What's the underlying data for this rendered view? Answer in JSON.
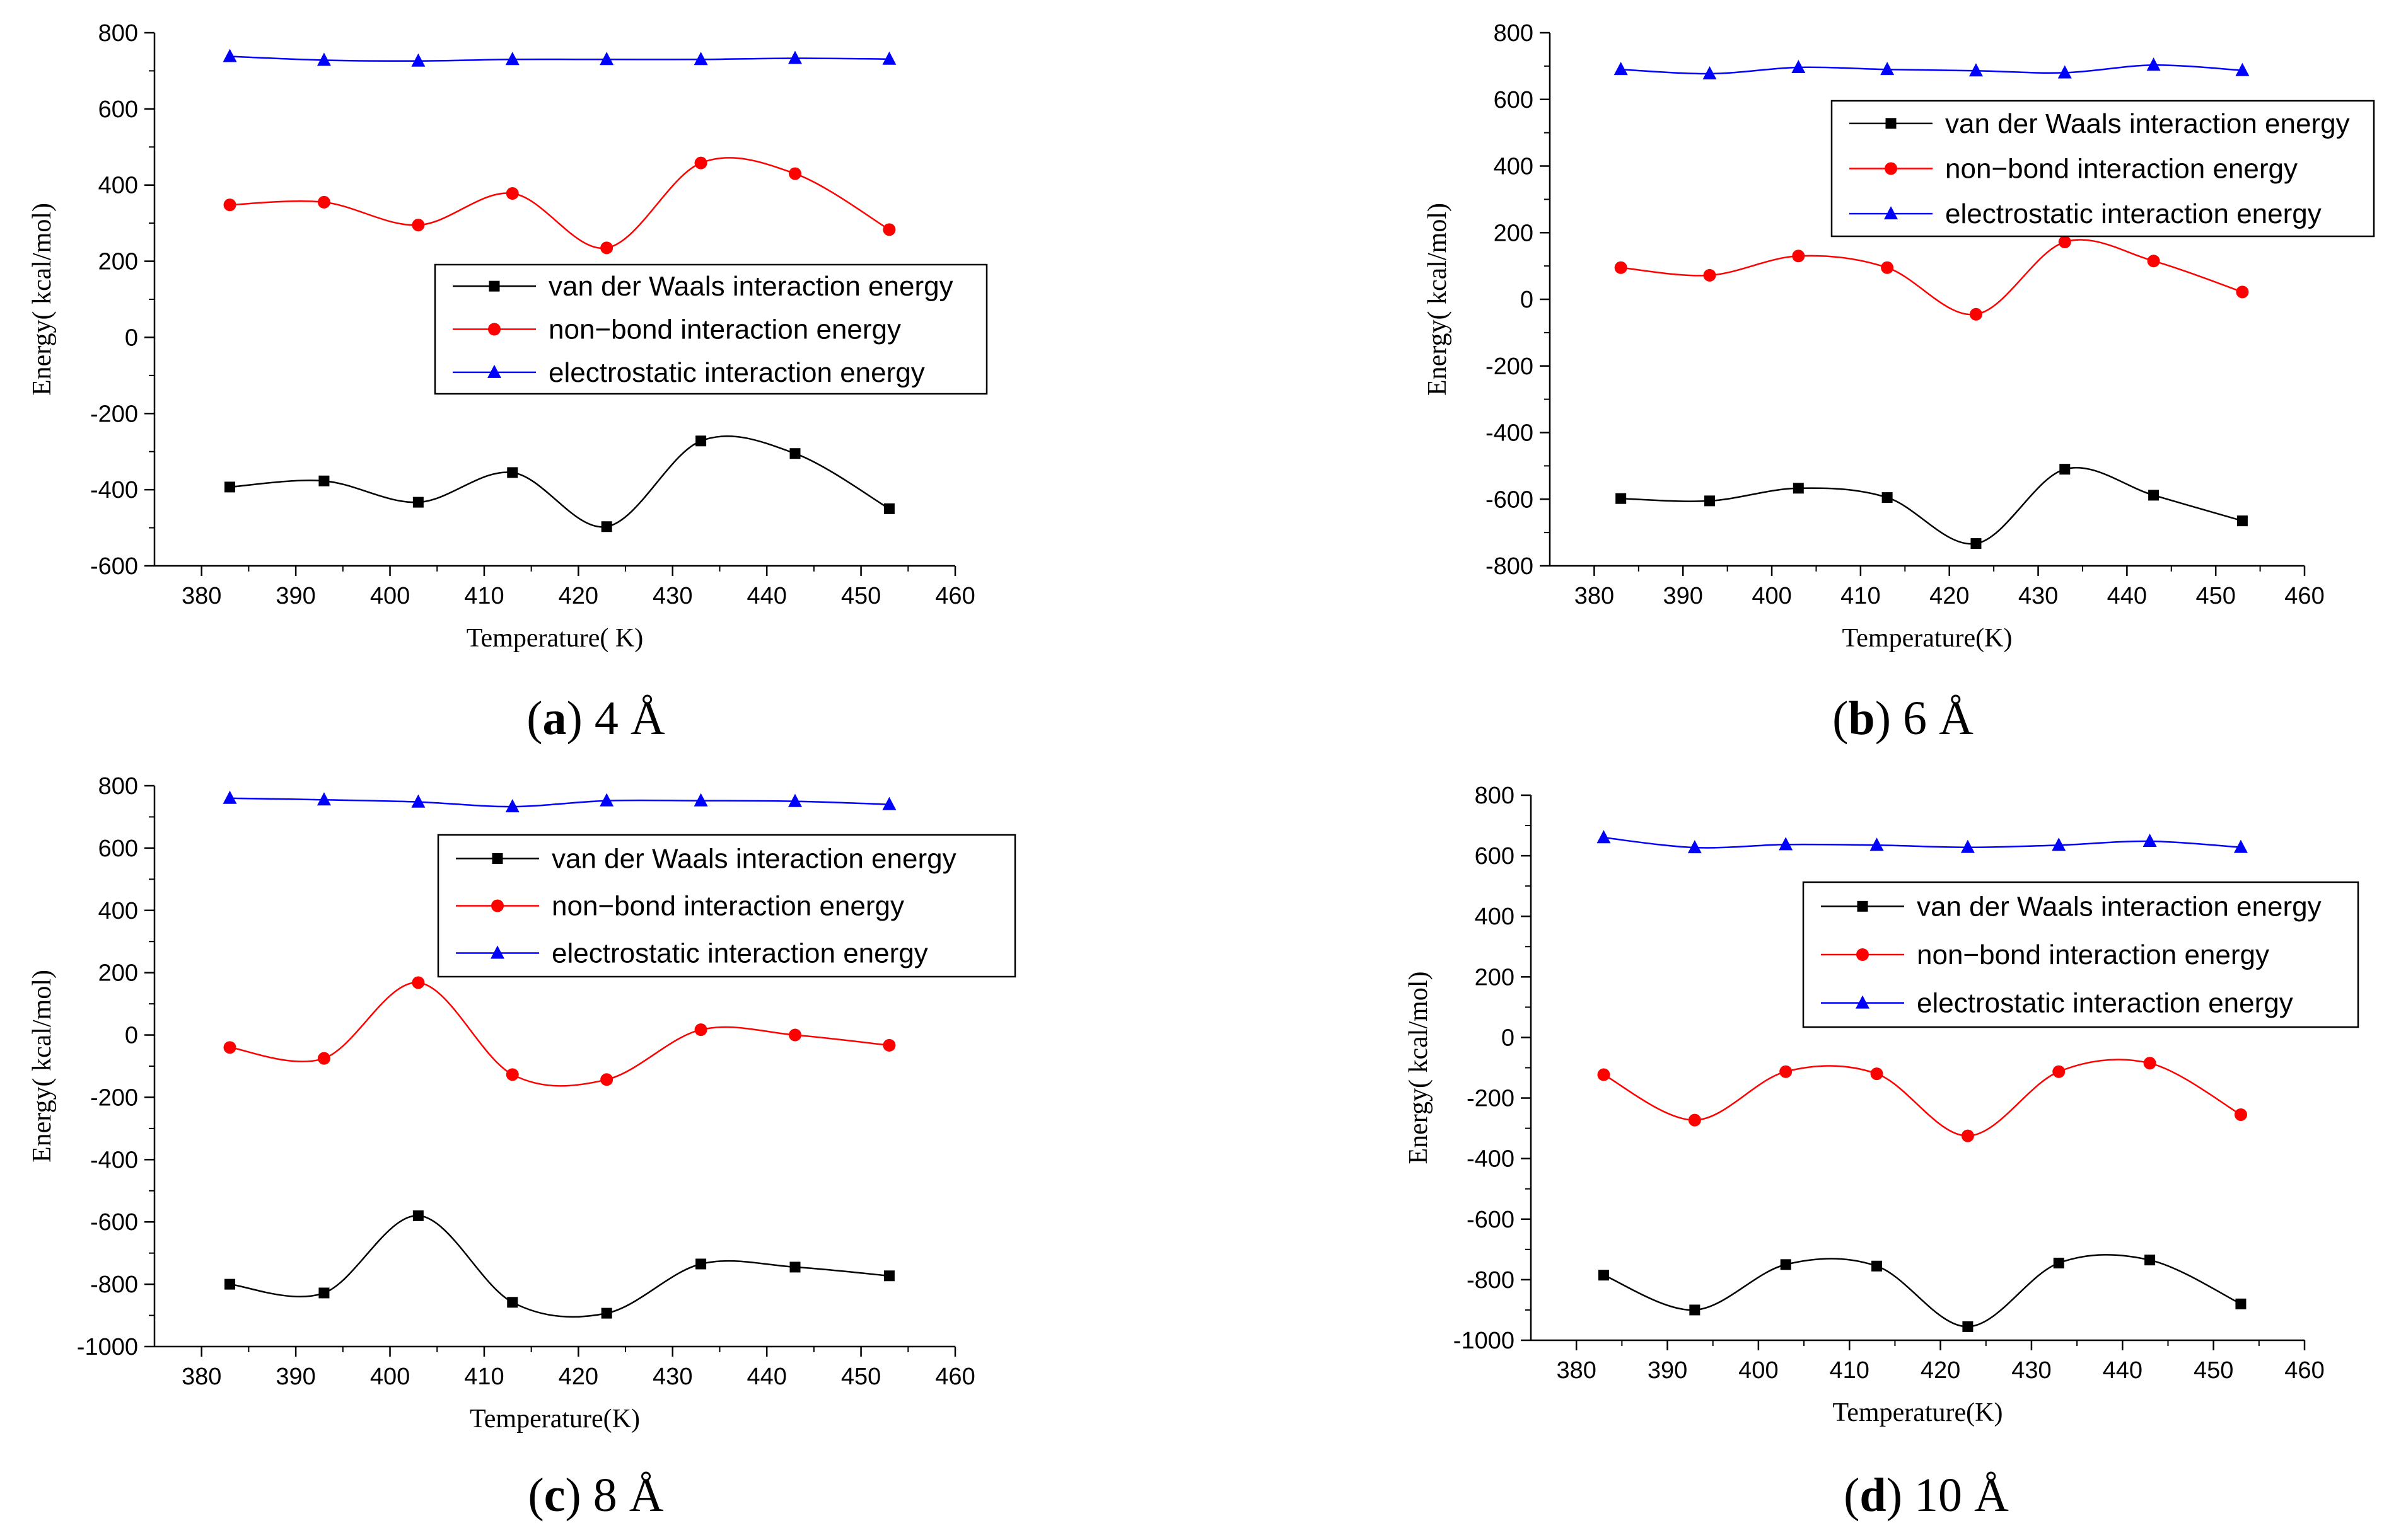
{
  "chart_data": [
    {
      "type": "line",
      "caption_letter": "a",
      "caption_rest": " 4 Å",
      "xlabel": "Temperature(  K)",
      "ylabel": "Energy(  kcal/mol)",
      "xlim": [
        375,
        460
      ],
      "ylim": [
        -600,
        800
      ],
      "xticks": [
        380,
        390,
        400,
        410,
        420,
        430,
        440,
        450,
        460
      ],
      "yticks": [
        -600,
        -400,
        -200,
        0,
        200,
        400,
        600,
        800
      ],
      "x": [
        383,
        393,
        403,
        413,
        423,
        433,
        443,
        453
      ],
      "legend_position": "middle-right",
      "series": [
        {
          "name": "van der Waals interaction energy",
          "marker": "square",
          "color": "#000000",
          "values": [
            -393,
            -377,
            -433,
            -355,
            -497,
            -272,
            -305,
            -450
          ]
        },
        {
          "name": "non−bond interaction energy",
          "marker": "circle",
          "color": "#ff0000",
          "values": [
            348,
            355,
            295,
            378,
            235,
            458,
            430,
            283
          ]
        },
        {
          "name": "electrostatic interaction energy",
          "marker": "triangle",
          "color": "#0000ff",
          "values": [
            738,
            728,
            726,
            730,
            730,
            730,
            733,
            731
          ]
        }
      ]
    },
    {
      "type": "line",
      "caption_letter": "b",
      "caption_rest": " 6 Å",
      "xlabel": "Temperature(K)",
      "ylabel": "Energy(  kcal/mol)",
      "xlim": [
        375,
        460
      ],
      "ylim": [
        -800,
        800
      ],
      "xticks": [
        380,
        390,
        400,
        410,
        420,
        430,
        440,
        450,
        460
      ],
      "yticks": [
        -800,
        -600,
        -400,
        -200,
        0,
        200,
        400,
        600,
        800
      ],
      "x": [
        383,
        393,
        403,
        413,
        423,
        433,
        443,
        453
      ],
      "legend_position": "top-right",
      "series": [
        {
          "name": "van der Waals interaction energy",
          "marker": "square",
          "color": "#000000",
          "values": [
            -598,
            -605,
            -567,
            -595,
            -733,
            -510,
            -588,
            -665
          ]
        },
        {
          "name": "non−bond interaction  energy",
          "marker": "circle",
          "color": "#ff0000",
          "values": [
            95,
            72,
            130,
            95,
            -45,
            172,
            115,
            22
          ]
        },
        {
          "name": "electrostatic interaction  energy",
          "marker": "triangle",
          "color": "#0000ff",
          "values": [
            690,
            677,
            696,
            690,
            686,
            680,
            703,
            687
          ]
        }
      ]
    },
    {
      "type": "line",
      "caption_letter": "c",
      "caption_rest": " 8 Å",
      "xlabel": "Temperature(K)",
      "ylabel": "Energy(  kcal/mol)",
      "xlim": [
        375,
        460
      ],
      "ylim": [
        -1000,
        800
      ],
      "xticks": [
        380,
        390,
        400,
        410,
        420,
        430,
        440,
        450,
        460
      ],
      "yticks": [
        -1000,
        -800,
        -600,
        -400,
        -200,
        0,
        200,
        400,
        600,
        800
      ],
      "x": [
        383,
        393,
        403,
        413,
        423,
        433,
        443,
        453
      ],
      "legend_position": "top-right",
      "series": [
        {
          "name": "van der Waals interaction energy",
          "marker": "square",
          "color": "#000000",
          "values": [
            -800,
            -828,
            -580,
            -858,
            -893,
            -735,
            -745,
            -773
          ]
        },
        {
          "name": "non−bond interaction energy",
          "marker": "circle",
          "color": "#ff0000",
          "values": [
            -40,
            -75,
            168,
            -127,
            -143,
            17,
            0,
            -33
          ]
        },
        {
          "name": "electrostatic interaction energy",
          "marker": "triangle",
          "color": "#0000ff",
          "values": [
            760,
            755,
            748,
            733,
            752,
            752,
            750,
            740
          ]
        }
      ]
    },
    {
      "type": "line",
      "caption_letter": "d",
      "caption_rest": " 10 Å",
      "xlabel": "Temperature(K)",
      "ylabel": "Energy(  kcal/mol)",
      "xlim": [
        375,
        460
      ],
      "ylim": [
        -1000,
        800
      ],
      "xticks": [
        380,
        390,
        400,
        410,
        420,
        430,
        440,
        450,
        460
      ],
      "yticks": [
        -1000,
        -800,
        -600,
        -400,
        -200,
        0,
        200,
        400,
        600,
        800
      ],
      "x": [
        383,
        393,
        403,
        413,
        423,
        433,
        443,
        453
      ],
      "legend_position": "top-right",
      "series": [
        {
          "name": "van der Waals interaction energy",
          "marker": "square",
          "color": "#000000",
          "values": [
            -785,
            -900,
            -750,
            -755,
            -955,
            -745,
            -735,
            -880
          ]
        },
        {
          "name": "non−bond interaction energy",
          "marker": "circle",
          "color": "#ff0000",
          "values": [
            -123,
            -273,
            -113,
            -120,
            -325,
            -113,
            -85,
            -255
          ]
        },
        {
          "name": "electrostatic interaction energy",
          "marker": "triangle",
          "color": "#0000ff",
          "values": [
            660,
            627,
            637,
            635,
            628,
            635,
            648,
            628
          ]
        }
      ]
    }
  ]
}
